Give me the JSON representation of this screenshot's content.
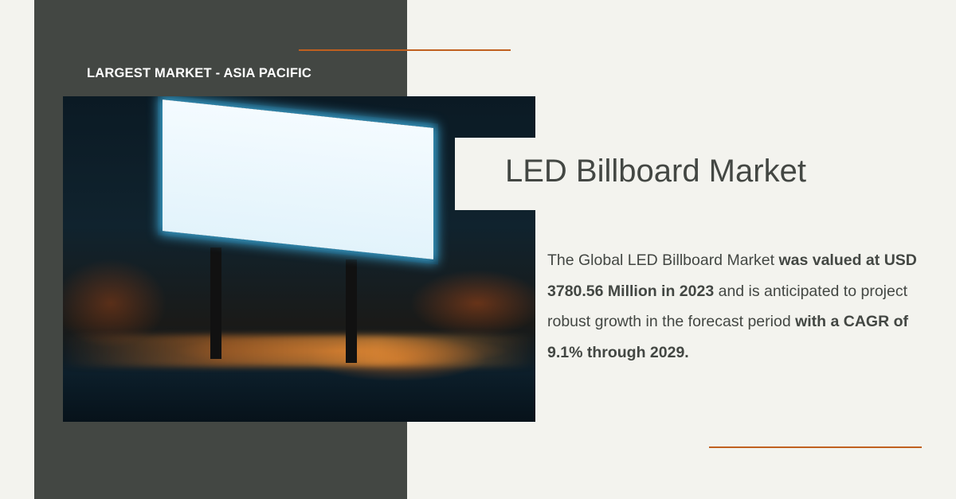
{
  "kicker": "LARGEST MARKET - ASIA PACIFIC",
  "title": "LED Billboard Market",
  "description": {
    "p1": "The Global LED Billboard Market ",
    "b1": "was valued at USD 3780.56 Million in 2023",
    "p2": " and is anticipated to project robust growth in the forecast period ",
    "b2": "with a CAGR of 9.1% through 2029."
  },
  "colors": {
    "panel": "#434743",
    "accent": "#c0601f",
    "background": "#f3f3ee"
  }
}
